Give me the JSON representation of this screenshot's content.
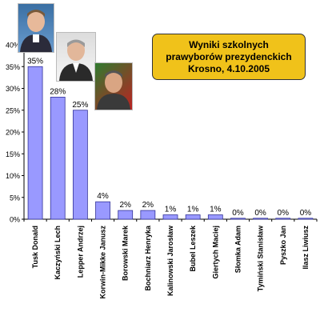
{
  "title": {
    "line1": "Wyniki szkolnych",
    "line2": "prawyborów prezydenckich",
    "line3": "Krosno, 4.10.2005"
  },
  "colors": {
    "bar": "#9999ff",
    "bar_stroke": "#333399",
    "title_box": "#f0c21a"
  },
  "photos": [
    {
      "name": "Tusk Donald"
    },
    {
      "name": "Kaczyński Lech"
    },
    {
      "name": "Lepper Andrzej"
    }
  ],
  "chart_data": {
    "type": "bar",
    "categories": [
      "Tusk Donald",
      "Kaczyński Lech",
      "Lepper Andrzej",
      "Korwin-Mikke Janusz",
      "Borowski Marek",
      "Bochniarz Henryka",
      "Kalinowski Jarosław",
      "Bubel Leszek",
      "Giertych Maciej",
      "Słomka Adam",
      "Tymiński Stanisław",
      "Pyszko Jan",
      "Ilasz Liwiusz"
    ],
    "values": [
      35,
      28,
      25,
      4,
      2,
      2,
      1,
      1,
      1,
      0,
      0,
      0,
      0
    ],
    "data_labels": [
      "35%",
      "28%",
      "25%",
      "4%",
      "2%",
      "2%",
      "1%",
      "1%",
      "1%",
      "0%",
      "0%",
      "0%",
      "0%"
    ],
    "yticks": [
      "0%",
      "5%",
      "10%",
      "15%",
      "20%",
      "25%",
      "30%",
      "35%",
      "40%"
    ],
    "ylim": [
      0,
      40
    ],
    "grid": false,
    "legend": "none"
  }
}
